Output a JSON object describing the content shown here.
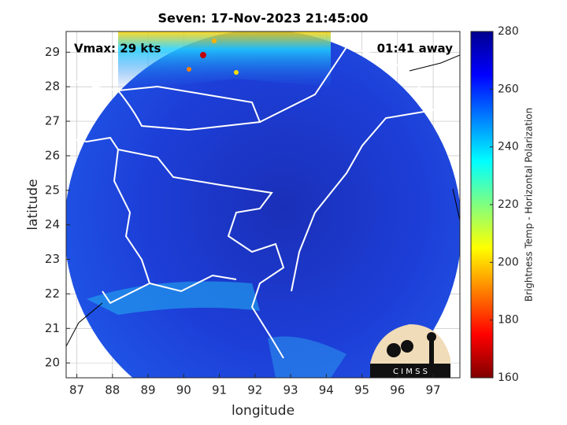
{
  "chart_data": {
    "type": "map",
    "title": "Seven: 17-Nov-2023 21:45:00",
    "xlabel": "longitude",
    "ylabel": "latitude",
    "annotations": [
      "Vmax: 29 kts",
      "01:41 away"
    ],
    "logo": "C I M S S",
    "xlim": [
      86.7,
      97.75
    ],
    "ylim": [
      19.57,
      29.6
    ],
    "xticks": [
      87,
      88,
      89,
      90,
      91,
      92,
      93,
      94,
      95,
      96,
      97
    ],
    "yticks": [
      20,
      21,
      22,
      23,
      24,
      25,
      26,
      27,
      28,
      29
    ],
    "grid": true,
    "colorbar": {
      "label": "Brightness Temp - Horizontal Polarization",
      "colormap": "jet",
      "lim": [
        160,
        280
      ],
      "ticks": [
        160,
        180,
        200,
        220,
        240,
        260,
        280
      ]
    }
  }
}
